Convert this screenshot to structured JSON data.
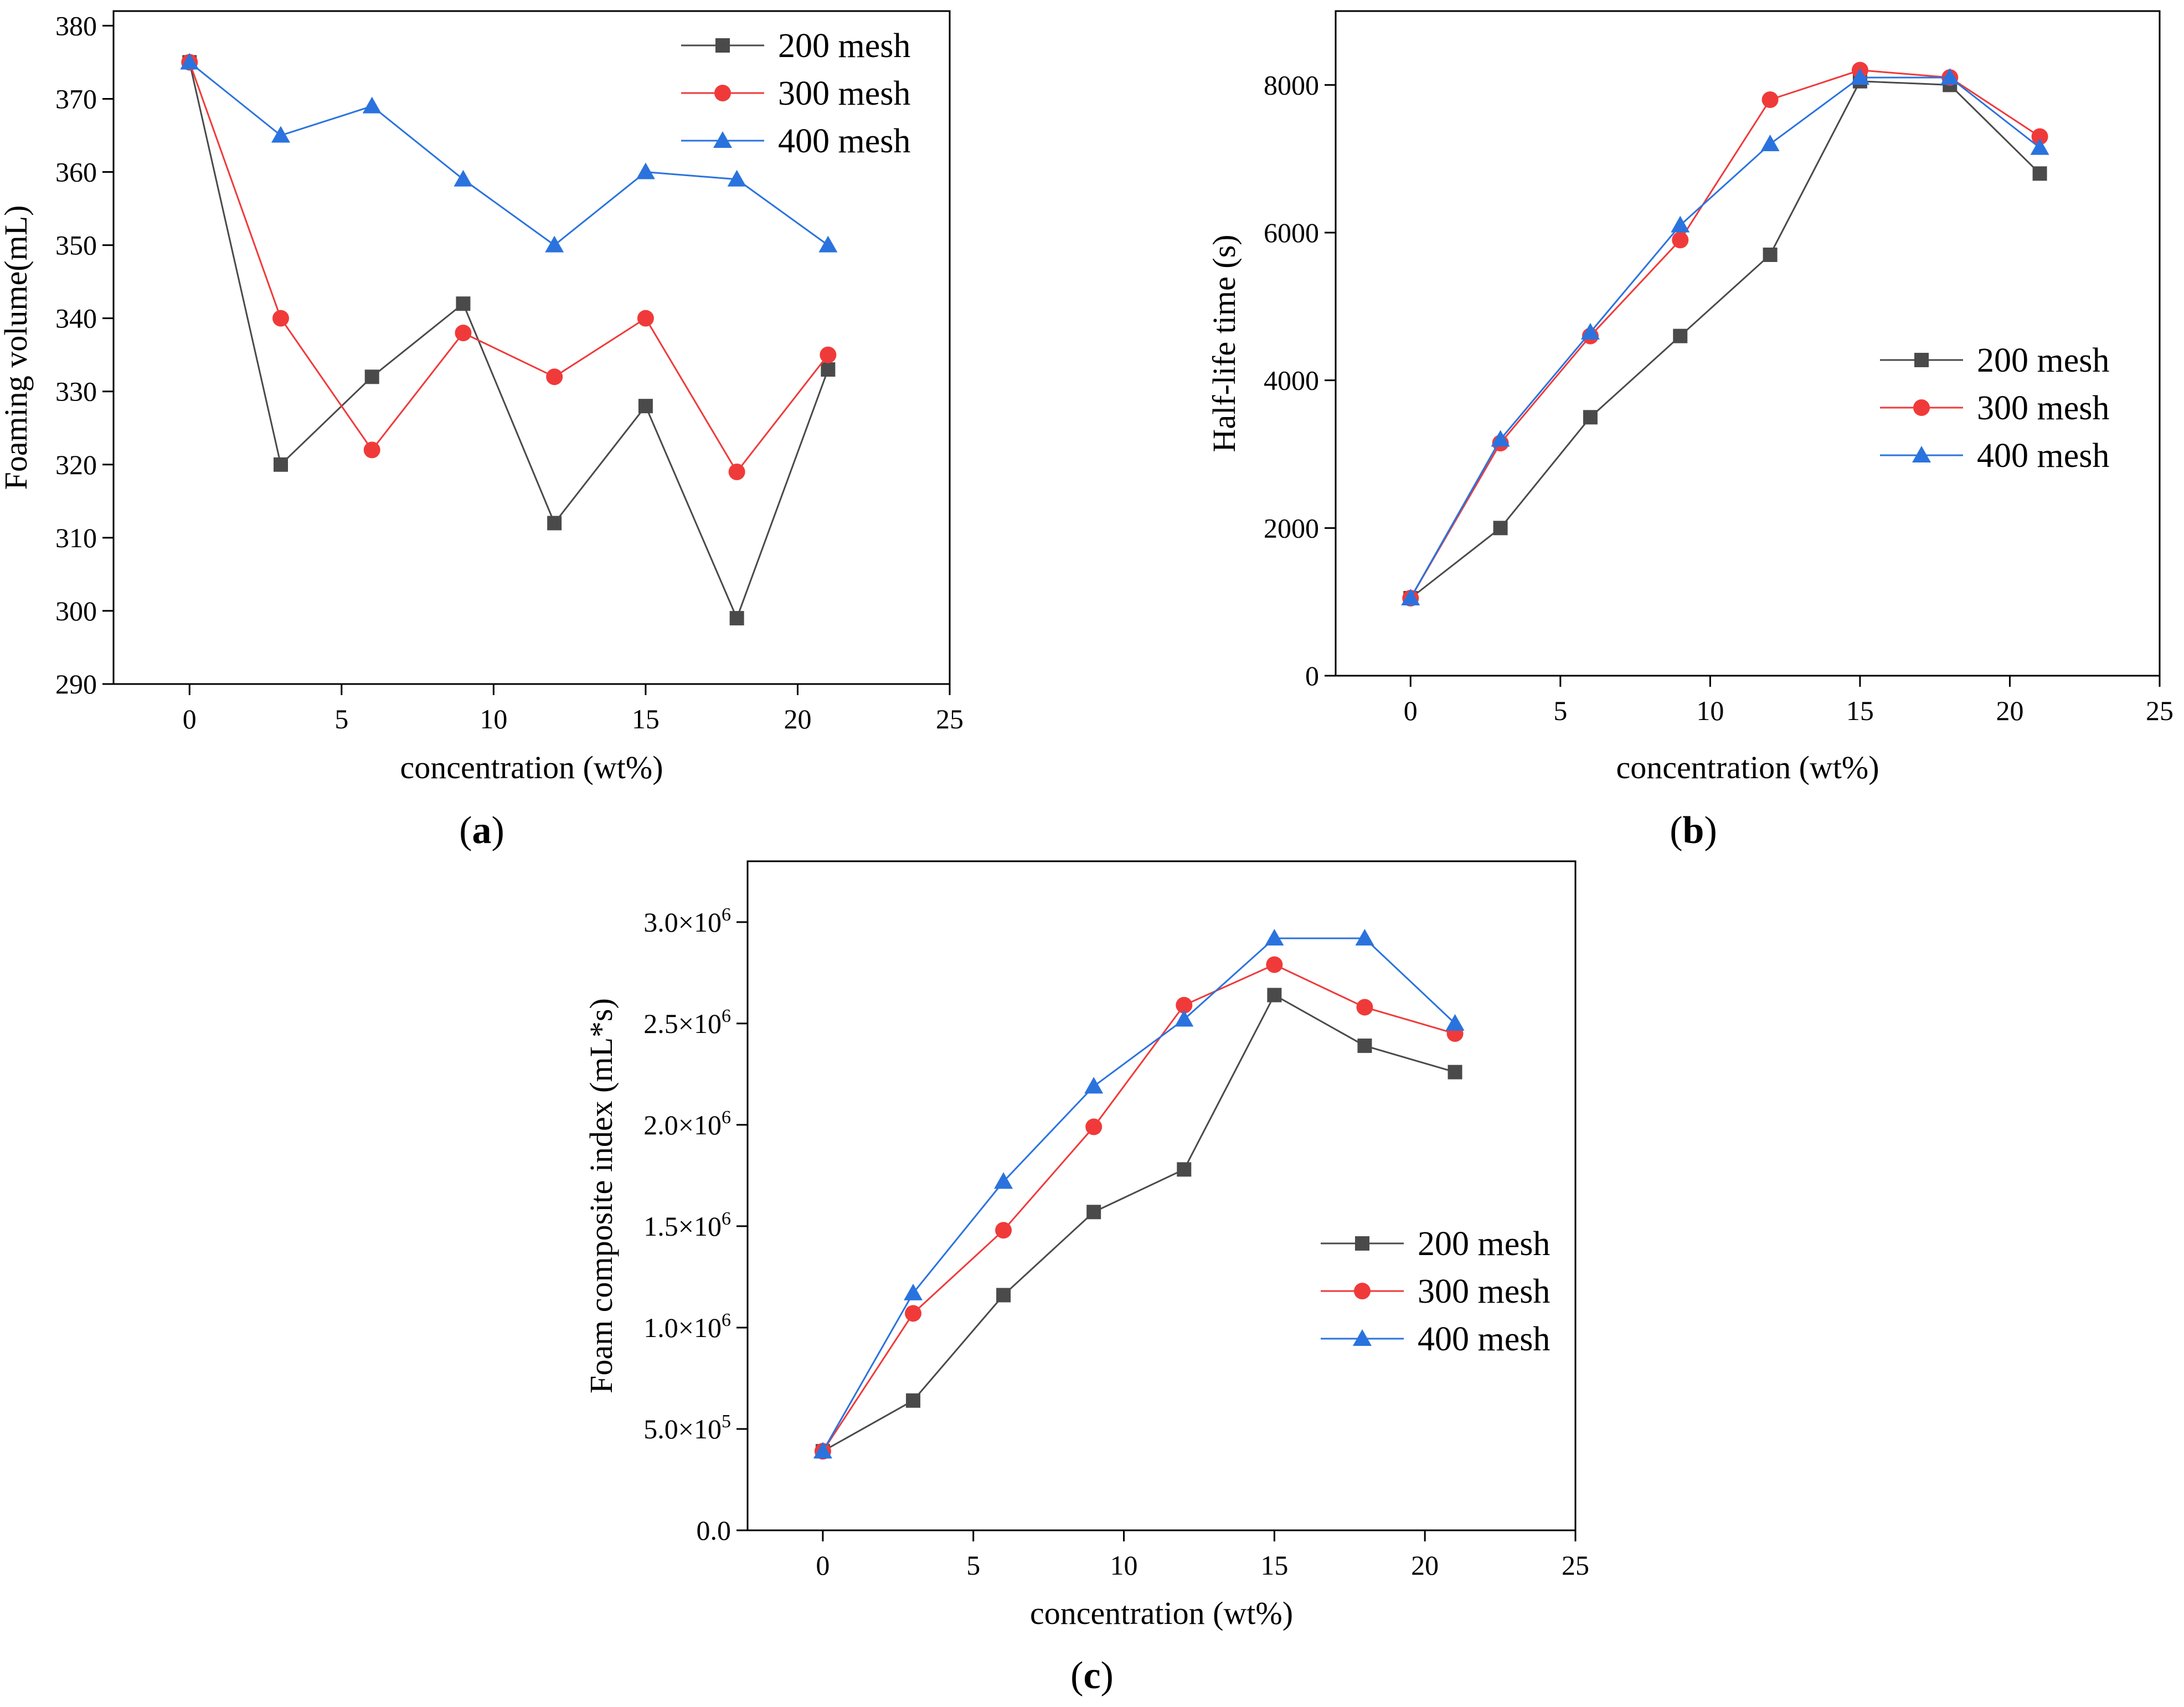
{
  "figure": {
    "panel_labels": [
      {
        "open": "(",
        "letter": "a",
        "close": ")"
      },
      {
        "open": "(",
        "letter": "b",
        "close": ")"
      },
      {
        "open": "(",
        "letter": "c",
        "close": ")"
      }
    ]
  },
  "colors": {
    "200 mesh": "#4a4a4a",
    "300 mesh": "#f03a3a",
    "400 mesh": "#2a73de",
    "axis": "#000000"
  },
  "chart_data": [
    {
      "id": "a",
      "type": "line",
      "title": "",
      "xlabel": "concentration (wt%)",
      "ylabel": "Foaming volume(mL)",
      "xlim": [
        -2.5,
        25
      ],
      "ylim": [
        290,
        382
      ],
      "xticks": [
        0,
        5,
        10,
        15,
        20,
        25
      ],
      "yticks": [
        290,
        300,
        310,
        320,
        330,
        340,
        350,
        360,
        370,
        380
      ],
      "yticklabels": [
        "290",
        "300",
        "310",
        "320",
        "330",
        "340",
        "350",
        "360",
        "370",
        "380"
      ],
      "legend_position": "top-right",
      "x": [
        0,
        3,
        6,
        9,
        12,
        15,
        18,
        21
      ],
      "series": [
        {
          "name": "200 mesh",
          "marker": "square",
          "values": [
            375,
            320,
            332,
            342,
            312,
            328,
            299,
            333
          ]
        },
        {
          "name": "300 mesh",
          "marker": "circle",
          "values": [
            375,
            340,
            322,
            338,
            332,
            340,
            319,
            335
          ]
        },
        {
          "name": "400 mesh",
          "marker": "triangle",
          "values": [
            375,
            365,
            369,
            359,
            350,
            360,
            359,
            350
          ]
        }
      ]
    },
    {
      "id": "b",
      "type": "line",
      "title": "",
      "xlabel": "concentration (wt%)",
      "ylabel": "Half-life time (s)",
      "xlim": [
        -2.5,
        25
      ],
      "ylim": [
        0,
        9000
      ],
      "xticks": [
        0,
        5,
        10,
        15,
        20,
        25
      ],
      "yticks": [
        0,
        2000,
        4000,
        6000,
        8000
      ],
      "yticklabels": [
        "0",
        "2000",
        "4000",
        "6000",
        "8000"
      ],
      "legend_position": "middle-right",
      "x": [
        0,
        3,
        6,
        9,
        12,
        15,
        18,
        21
      ],
      "series": [
        {
          "name": "200 mesh",
          "marker": "square",
          "values": [
            1050,
            2000,
            3500,
            4600,
            5700,
            8050,
            8000,
            6800
          ]
        },
        {
          "name": "300 mesh",
          "marker": "circle",
          "values": [
            1050,
            3150,
            4600,
            5900,
            7800,
            8200,
            8100,
            7300
          ]
        },
        {
          "name": "400 mesh",
          "marker": "triangle",
          "values": [
            1050,
            3200,
            4650,
            6100,
            7200,
            8100,
            8100,
            7150
          ]
        }
      ]
    },
    {
      "id": "c",
      "type": "line",
      "title": "",
      "xlabel": "concentration (wt%)",
      "ylabel": "Foam composite index (mL*s)",
      "xlim": [
        -2.5,
        25
      ],
      "ylim": [
        0,
        3300000
      ],
      "xticks": [
        0,
        5,
        10,
        15,
        20,
        25
      ],
      "yticks": [
        0,
        500000,
        1000000,
        1500000,
        2000000,
        2500000,
        3000000
      ],
      "yticklabels": [
        {
          "mant": "0.0",
          "exp": ""
        },
        {
          "mant": "5.0×10",
          "exp": "5"
        },
        {
          "mant": "1.0×10",
          "exp": "6"
        },
        {
          "mant": "1.5×10",
          "exp": "6"
        },
        {
          "mant": "2.0×10",
          "exp": "6"
        },
        {
          "mant": "2.5×10",
          "exp": "6"
        },
        {
          "mant": "3.0×10",
          "exp": "6"
        }
      ],
      "legend_position": "middle-right",
      "x": [
        0,
        3,
        6,
        9,
        12,
        15,
        18,
        21
      ],
      "series": [
        {
          "name": "200 mesh",
          "marker": "square",
          "values": [
            390000,
            640000,
            1160000,
            1570000,
            1780000,
            2640000,
            2390000,
            2260000
          ]
        },
        {
          "name": "300 mesh",
          "marker": "circle",
          "values": [
            390000,
            1070000,
            1480000,
            1990000,
            2590000,
            2790000,
            2580000,
            2450000
          ]
        },
        {
          "name": "400 mesh",
          "marker": "triangle",
          "values": [
            390000,
            1170000,
            1720000,
            2190000,
            2520000,
            2920000,
            2920000,
            2500000
          ]
        }
      ]
    }
  ]
}
